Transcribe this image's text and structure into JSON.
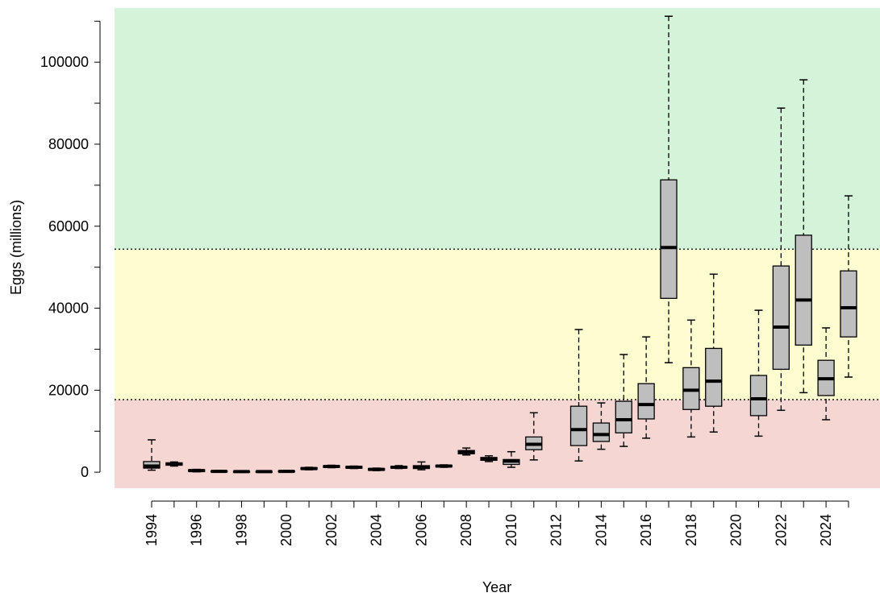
{
  "chart_data": {
    "type": "box",
    "x_label": "Year",
    "y_label": "Eggs (millions)",
    "categories": [
      "1994",
      null,
      "1996",
      null,
      "1998",
      null,
      "2000",
      null,
      "2002",
      null,
      "2004",
      null,
      "2006",
      null,
      "2008",
      null,
      "2010",
      null,
      "2012",
      null,
      "2014",
      null,
      "2016",
      null,
      "2018",
      null,
      "2020",
      null,
      "2022",
      null,
      "2024",
      null
    ],
    "min": [
      500,
      1500,
      100,
      50,
      50,
      50,
      100,
      600,
      1100,
      900,
      400,
      900,
      600,
      1200,
      4200,
      2600,
      1200,
      3000,
      null,
      2750,
      5600,
      6300,
      8300,
      26700,
      8600,
      9800,
      null,
      8800,
      15100,
      19400,
      12800,
      23200
    ],
    "q1": [
      1000,
      1700,
      200,
      100,
      100,
      100,
      100,
      700,
      1200,
      1000,
      500,
      1000,
      900,
      1300,
      4500,
      2900,
      1900,
      5500,
      null,
      6500,
      7500,
      9600,
      13000,
      42400,
      15300,
      16100,
      null,
      13800,
      25100,
      31000,
      18700,
      33000
    ],
    "median": [
      1500,
      2000,
      400,
      200,
      150,
      150,
      200,
      900,
      1400,
      1200,
      700,
      1200,
      1300,
      1500,
      4900,
      3200,
      2700,
      6800,
      null,
      10400,
      9200,
      12800,
      16500,
      54800,
      20000,
      22200,
      null,
      17900,
      35400,
      42000,
      22800,
      40100
    ],
    "q3": [
      2600,
      2300,
      600,
      300,
      200,
      200,
      300,
      1100,
      1600,
      1400,
      900,
      1400,
      1600,
      1700,
      5300,
      3600,
      3100,
      8600,
      null,
      16100,
      12000,
      17300,
      21600,
      71300,
      25500,
      30200,
      null,
      23600,
      50300,
      57800,
      27300,
      49100
    ],
    "max": [
      7900,
      2500,
      700,
      400,
      250,
      250,
      400,
      1200,
      1700,
      1500,
      1000,
      1600,
      2500,
      1800,
      5900,
      4000,
      5000,
      14500,
      null,
      34800,
      16900,
      28700,
      33000,
      111200,
      37100,
      48300,
      null,
      39500,
      88800,
      95700,
      35200,
      67400
    ],
    "box_color": "#bebebe",
    "ylim": [
      -3900,
      113200
    ],
    "yticks": [
      0,
      20000,
      40000,
      60000,
      80000,
      100000
    ],
    "yminor_ticks": [
      10000,
      30000,
      50000,
      70000,
      90000,
      110000
    ],
    "thresholds": [
      17700,
      54400
    ],
    "zone_colors": [
      "#f6d6d2",
      "#fdfdd0",
      "#d4f4da"
    ]
  }
}
